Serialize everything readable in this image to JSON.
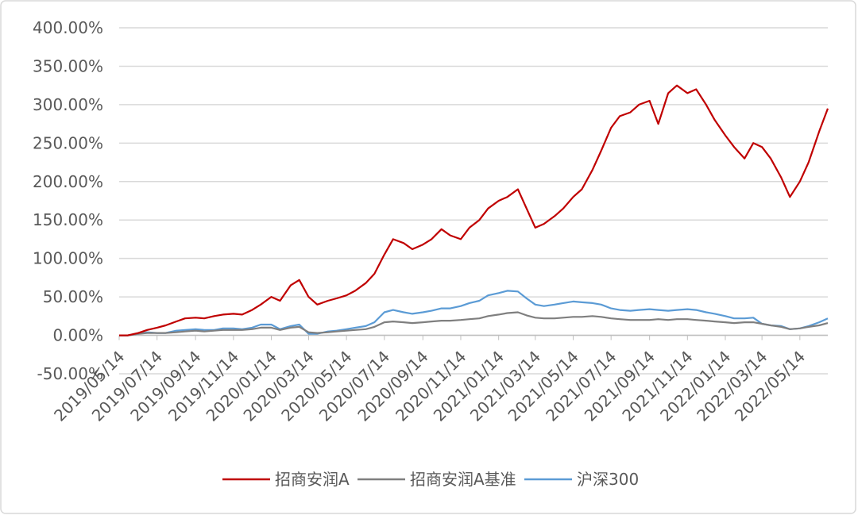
{
  "chart_data": {
    "type": "line",
    "x": [
      "2019/05/14",
      "2019/05/28",
      "2019/06/14",
      "2019/06/28",
      "2019/07/14",
      "2019/07/28",
      "2019/08/14",
      "2019/08/28",
      "2019/09/14",
      "2019/09/28",
      "2019/10/14",
      "2019/10/28",
      "2019/11/14",
      "2019/11/28",
      "2019/12/14",
      "2019/12/28",
      "2020/01/14",
      "2020/01/28",
      "2020/02/14",
      "2020/02/28",
      "2020/03/14",
      "2020/03/28",
      "2020/04/14",
      "2020/04/28",
      "2020/05/14",
      "2020/05/28",
      "2020/06/14",
      "2020/06/28",
      "2020/07/14",
      "2020/07/28",
      "2020/08/14",
      "2020/08/28",
      "2020/09/14",
      "2020/09/28",
      "2020/10/14",
      "2020/10/28",
      "2020/11/14",
      "2020/11/28",
      "2020/12/14",
      "2020/12/28",
      "2021/01/14",
      "2021/01/28",
      "2021/02/14",
      "2021/02/28",
      "2021/03/14",
      "2021/03/28",
      "2021/04/14",
      "2021/04/28",
      "2021/05/14",
      "2021/05/28",
      "2021/06/14",
      "2021/06/28",
      "2021/07/14",
      "2021/07/28",
      "2021/08/14",
      "2021/08/28",
      "2021/09/14",
      "2021/09/28",
      "2021/10/14",
      "2021/10/28",
      "2021/11/14",
      "2021/11/28",
      "2021/12/14",
      "2021/12/28",
      "2022/01/14",
      "2022/01/28",
      "2022/02/14",
      "2022/02/28",
      "2022/03/14",
      "2022/03/28",
      "2022/04/14",
      "2022/04/28",
      "2022/05/14",
      "2022/05/28",
      "2022/06/14",
      "2022/06/28"
    ],
    "series": [
      {
        "name": "招商安润A",
        "color": "#c00000",
        "values": [
          0,
          0,
          3,
          7,
          10,
          13,
          18,
          22,
          23,
          22,
          25,
          27,
          28,
          27,
          33,
          40,
          50,
          45,
          65,
          72,
          50,
          40,
          45,
          48,
          52,
          58,
          68,
          80,
          105,
          125,
          120,
          112,
          118,
          125,
          138,
          130,
          125,
          140,
          150,
          165,
          175,
          180,
          190,
          165,
          140,
          145,
          155,
          165,
          180,
          190,
          215,
          240,
          270,
          285,
          290,
          300,
          305,
          275,
          315,
          325,
          315,
          320,
          300,
          280,
          260,
          245,
          230,
          250,
          245,
          230,
          205,
          180,
          200,
          225,
          265,
          295
        ]
      },
      {
        "name": "招商安润A基准",
        "color": "#7f7f7f",
        "values": [
          0,
          0,
          2,
          3,
          3,
          3,
          4,
          5,
          6,
          5,
          6,
          7,
          7,
          7,
          8,
          10,
          10,
          7,
          10,
          11,
          4,
          3,
          4,
          5,
          6,
          7,
          8,
          11,
          17,
          18,
          17,
          16,
          17,
          18,
          19,
          19,
          20,
          21,
          22,
          25,
          27,
          29,
          30,
          26,
          23,
          22,
          22,
          23,
          24,
          24,
          25,
          24,
          22,
          21,
          20,
          20,
          20,
          21,
          20,
          21,
          21,
          20,
          19,
          18,
          17,
          16,
          17,
          17,
          15,
          13,
          11,
          8,
          9,
          11,
          13,
          16
        ]
      },
      {
        "name": "沪深300",
        "color": "#5b9bd5",
        "values": [
          0,
          0,
          2,
          4,
          3,
          3,
          6,
          7,
          8,
          7,
          7,
          9,
          9,
          8,
          10,
          14,
          14,
          8,
          12,
          14,
          2,
          2,
          5,
          6,
          8,
          10,
          12,
          17,
          30,
          33,
          30,
          28,
          30,
          32,
          35,
          35,
          38,
          42,
          45,
          52,
          55,
          58,
          57,
          48,
          40,
          38,
          40,
          42,
          44,
          43,
          42,
          40,
          35,
          33,
          32,
          33,
          34,
          33,
          32,
          33,
          34,
          33,
          30,
          28,
          25,
          22,
          22,
          23,
          15,
          13,
          12,
          8,
          9,
          12,
          17,
          22
        ]
      }
    ],
    "xlim": [
      "2019/05/14",
      "2022/06/28"
    ],
    "xticks": [
      "2019/05/14",
      "2019/07/14",
      "2019/09/14",
      "2019/11/14",
      "2020/01/14",
      "2020/03/14",
      "2020/05/14",
      "2020/07/14",
      "2020/09/14",
      "2020/11/14",
      "2021/01/14",
      "2021/03/14",
      "2021/05/14",
      "2021/07/14",
      "2021/09/14",
      "2021/11/14",
      "2022/01/14",
      "2022/03/14",
      "2022/05/14"
    ],
    "ylim": [
      -50,
      400
    ],
    "yticks": [
      {
        "value": -50,
        "label": "-50.00%"
      },
      {
        "value": 0,
        "label": "0.00%"
      },
      {
        "value": 50,
        "label": "50.00%"
      },
      {
        "value": 100,
        "label": "100.00%"
      },
      {
        "value": 150,
        "label": "150.00%"
      },
      {
        "value": 200,
        "label": "200.00%"
      },
      {
        "value": 250,
        "label": "250.00%"
      },
      {
        "value": 300,
        "label": "300.00%"
      },
      {
        "value": 350,
        "label": "350.00%"
      },
      {
        "value": 400,
        "label": "400.00%"
      }
    ],
    "grid": true,
    "legend": "bottom"
  }
}
